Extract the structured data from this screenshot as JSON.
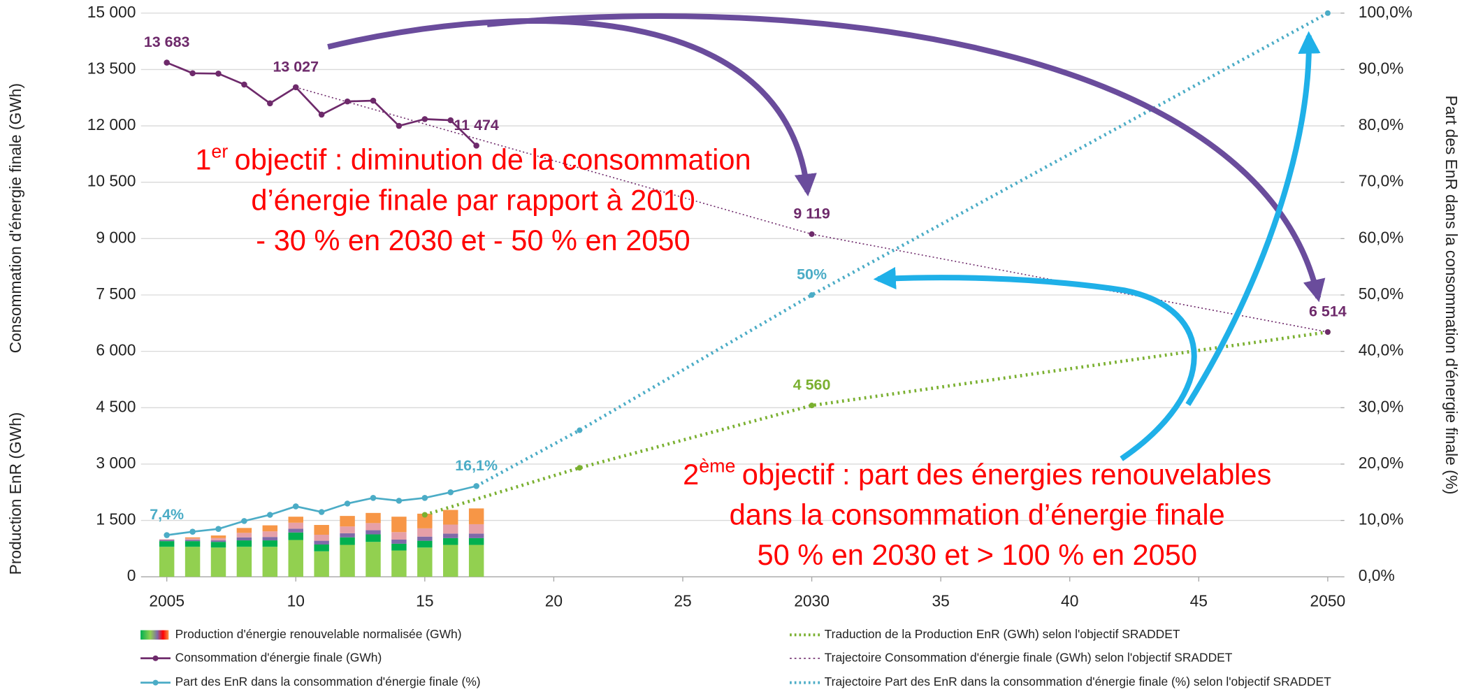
{
  "chart_data": {
    "type": "combo",
    "xlim": [
      2004,
      2050.5
    ],
    "xticks": [
      2005,
      {
        "value": 2010,
        "label": "10"
      },
      {
        "value": 2015,
        "label": "15"
      },
      {
        "value": 2020,
        "label": "20"
      },
      {
        "value": 2025,
        "label": "25"
      },
      2030,
      {
        "value": 2035,
        "label": "35"
      },
      {
        "value": 2040,
        "label": "40"
      },
      {
        "value": 2045,
        "label": "45"
      },
      2050
    ],
    "ylim": [
      0,
      15000
    ],
    "yticks": [
      0,
      {
        "value": 1500,
        "label": "1 500"
      },
      {
        "value": 3000,
        "label": "3 000"
      },
      {
        "value": 4500,
        "label": "4 500"
      },
      {
        "value": 6000,
        "label": "6 000"
      },
      {
        "value": 7500,
        "label": "7 500"
      },
      {
        "value": 9000,
        "label": "9 000"
      },
      {
        "value": 10500,
        "label": "10 500"
      },
      {
        "value": 12000,
        "label": "12 000"
      },
      {
        "value": 13500,
        "label": "13 500"
      },
      {
        "value": 15000,
        "label": "15 000"
      }
    ],
    "y2lim": [
      0,
      100
    ],
    "y2ticks": [
      {
        "value": 0,
        "label": "0,0%"
      },
      {
        "value": 10,
        "label": "10,0%"
      },
      {
        "value": 20,
        "label": "20,0%"
      },
      {
        "value": 30,
        "label": "30,0%"
      },
      {
        "value": 40,
        "label": "40,0%"
      },
      {
        "value": 50,
        "label": "50,0%"
      },
      {
        "value": 60,
        "label": "60,0%"
      },
      {
        "value": 70,
        "label": "70,0%"
      },
      {
        "value": 80,
        "label": "80,0%"
      },
      {
        "value": 90,
        "label": "90,0%"
      },
      {
        "value": 100,
        "label": "100,0%"
      }
    ],
    "grid": true,
    "ylabels": [
      "Consommation d'énergie finale (GWh)",
      "Production EnR (GWh)"
    ],
    "y2label": "Part des  EnR dans la consommation d'énergie finale (%)",
    "series": [
      {
        "name": "Production d'énergie renouvelable normalisée (GWh)",
        "type": "stacked-bar",
        "x": [
          2005,
          2006,
          2007,
          2008,
          2009,
          2010,
          2011,
          2012,
          2013,
          2014,
          2015,
          2016,
          2017
        ],
        "segments": [
          {
            "color": "#92d050",
            "values": [
              800,
              800,
              780,
              800,
              800,
              980,
              680,
              850,
              930,
              700,
              780,
              850,
              850
            ]
          },
          {
            "color": "#00b050",
            "values": [
              150,
              150,
              150,
              170,
              170,
              200,
              180,
              200,
              200,
              180,
              180,
              180,
              180
            ]
          },
          {
            "color": "#7f6aa8",
            "values": [
              30,
              30,
              40,
              80,
              90,
              100,
              100,
              110,
              110,
              110,
              110,
              120,
              120
            ]
          },
          {
            "color": "#e6a0a8",
            "values": [
              20,
              40,
              60,
              120,
              150,
              160,
              160,
              180,
              190,
              200,
              220,
              240,
              250
            ]
          },
          {
            "color": "#f79646",
            "values": [
              0,
              30,
              70,
              130,
              160,
              160,
              260,
              280,
              270,
              410,
              390,
              390,
              420
            ]
          }
        ]
      },
      {
        "name": "Consommation d'énergie finale (GWh)",
        "type": "line",
        "color": "#6e2a6b",
        "x": [
          2005,
          2006,
          2007,
          2008,
          2009,
          2010,
          2011,
          2012,
          2013,
          2014,
          2015,
          2016,
          2017
        ],
        "values": [
          13683,
          13400,
          13390,
          13100,
          12600,
          13027,
          12300,
          12650,
          12670,
          12000,
          12180,
          12150,
          11474
        ],
        "value_labels": [
          "13 683",
          null,
          null,
          null,
          null,
          "13 027",
          null,
          null,
          null,
          null,
          null,
          null,
          "11 474"
        ]
      },
      {
        "name": "Part des EnR dans la consommation d'énergie finale (%)",
        "type": "line",
        "color": "#4bacc6",
        "axis": "y2",
        "x": [
          2005,
          2006,
          2007,
          2008,
          2009,
          2010,
          2011,
          2012,
          2013,
          2014,
          2015,
          2016,
          2017
        ],
        "values": [
          7.4,
          8.0,
          8.5,
          9.9,
          11.0,
          12.5,
          11.5,
          13.0,
          14.0,
          13.5,
          14.0,
          15.0,
          16.1
        ],
        "value_labels": [
          "7,4%",
          null,
          null,
          null,
          null,
          null,
          null,
          null,
          null,
          null,
          null,
          null,
          "16,1%"
        ]
      },
      {
        "name": "Traduction de la Production EnR (GWh) selon l'objectif SRADDET",
        "type": "dotted",
        "color": "#7ab030",
        "width": 3.5,
        "x": [
          2015,
          2021,
          2030,
          2050
        ],
        "values": [
          1650,
          2900,
          4560,
          6514
        ],
        "value_labels": [
          null,
          null,
          "4 560",
          null
        ]
      },
      {
        "name": "Trajectoire Consommation d'énergie finale (GWh) selon l'objectif SRADDET",
        "type": "dotted",
        "color": "#6e2a6b",
        "width": 1.2,
        "x": [
          2010,
          2030,
          2050
        ],
        "values": [
          13027,
          9119,
          6514
        ],
        "value_labels": [
          null,
          "9 119",
          "6 514"
        ]
      },
      {
        "name": "Trajectoire Part des EnR dans la consommation d'énergie finale (%) selon l'objectif SRADDET",
        "type": "dotted",
        "color": "#4bacc6",
        "width": 3.5,
        "axis": "y2",
        "x": [
          2017,
          2021,
          2030,
          2050
        ],
        "values": [
          16.1,
          26,
          50,
          100
        ],
        "value_labels": [
          null,
          null,
          "50%",
          "> 100%"
        ]
      }
    ],
    "annotations": [
      {
        "color": "#ff0000",
        "prefix": "1",
        "sup": "er",
        "lines": [
          "objectif : diminution de la consommation",
          "d’énergie finale par rapport à 2010",
          "- 30 % en 2030 et - 50 % en 2050"
        ]
      },
      {
        "color": "#ff0000",
        "prefix": "2",
        "sup": "ème",
        "lines": [
          "objectif : part des énergies renouvelables",
          "dans la consommation d’énergie finale",
          "50 % en 2030 et > 100 % en 2050"
        ]
      }
    ]
  }
}
